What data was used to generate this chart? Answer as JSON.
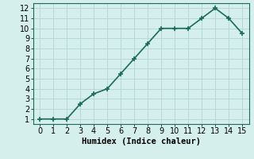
{
  "x": [
    0,
    1,
    2,
    3,
    4,
    5,
    6,
    7,
    8,
    9,
    10,
    11,
    12,
    13,
    14,
    15
  ],
  "y": [
    1,
    1,
    1,
    2.5,
    3.5,
    4,
    5.5,
    7,
    8.5,
    10,
    10,
    10,
    11,
    12,
    11,
    9.5
  ],
  "line_color": "#1a6b5a",
  "marker": "+",
  "marker_size": 4,
  "marker_linewidth": 1.2,
  "background_color": "#d5efec",
  "grid_color": "#b8d8d5",
  "xlabel": "Humidex (Indice chaleur)",
  "xlabel_fontsize": 7.5,
  "xlim_min": -0.5,
  "xlim_max": 15.5,
  "ylim_min": 0.5,
  "ylim_max": 12.5,
  "xticks": [
    0,
    1,
    2,
    3,
    4,
    5,
    6,
    7,
    8,
    9,
    10,
    11,
    12,
    13,
    14,
    15
  ],
  "yticks": [
    1,
    2,
    3,
    4,
    5,
    6,
    7,
    8,
    9,
    10,
    11,
    12
  ],
  "tick_fontsize": 7,
  "linewidth": 1.2
}
